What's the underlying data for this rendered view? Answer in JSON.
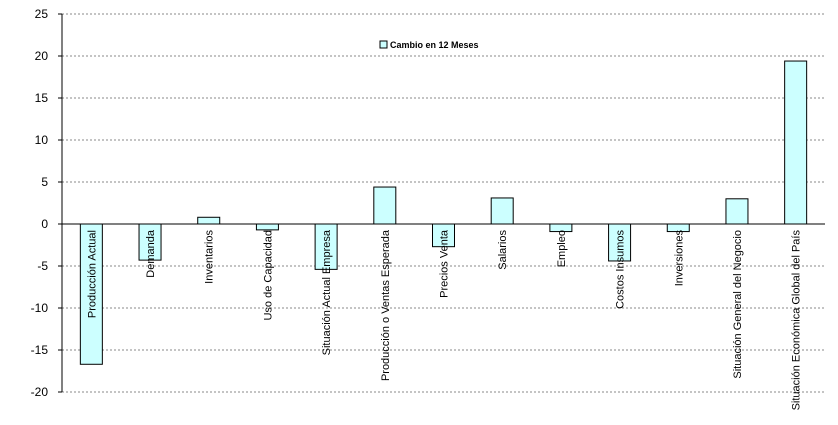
{
  "chart_data": {
    "type": "bar",
    "legend": {
      "label": "Cambio en 12 Meses",
      "placement": "top-center"
    },
    "categories": [
      "Producción Actual",
      "Demanda",
      "Inventarios",
      "Uso de Capacidad",
      "Situación Actual Empresa",
      "Producción o Ventas Esperada",
      "Precios Venta",
      "Salarios",
      "Empleo",
      "Costos Insumos",
      "Inversiones",
      "Situación General del Negocio",
      "Situación Económica Global del País"
    ],
    "series": [
      {
        "name": "Cambio en 12 Meses",
        "values": [
          -16.7,
          -4.3,
          0.8,
          -0.7,
          -5.4,
          4.4,
          -2.7,
          3.1,
          -0.9,
          -4.4,
          -0.9,
          3.0,
          19.4
        ]
      }
    ],
    "ylim": [
      -20,
      25
    ],
    "yticks": [
      -20,
      -15,
      -10,
      -5,
      0,
      5,
      10,
      15,
      20,
      25
    ],
    "grid": {
      "horizontal": true,
      "style": "dashed"
    },
    "colors": {
      "bar_fill": "#ccffff",
      "bar_stroke": "#000000",
      "grid": "#888888"
    }
  }
}
